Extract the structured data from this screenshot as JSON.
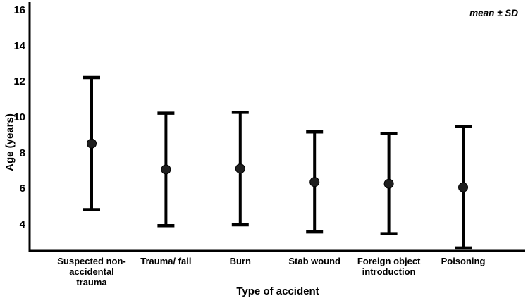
{
  "figure": {
    "annotation": "mean ± SD",
    "y_axis_title": "Age (years)",
    "x_axis_title": "Type of accident"
  },
  "chart_data": {
    "type": "scatter",
    "subtype": "errorbar-mean-sd",
    "title": "",
    "xlabel": "Type of accident",
    "ylabel": "Age (years)",
    "annotation": "mean ± SD",
    "categories": [
      "Suspected non-\naccidental\ntrauma",
      "Trauma/ fall",
      "Burn",
      "Stab wound",
      "Foreign object\nintroduction",
      "Poisoning"
    ],
    "series": [
      {
        "name": "mean ± SD",
        "means": [
          8.55,
          7.1,
          7.15,
          6.4,
          6.3,
          6.1
        ],
        "sds": [
          3.7,
          3.15,
          3.15,
          2.8,
          2.8,
          3.4
        ],
        "upper": [
          12.25,
          10.25,
          10.3,
          9.2,
          9.1,
          9.5
        ],
        "lower": [
          4.85,
          3.95,
          4.0,
          3.6,
          3.5,
          2.7
        ]
      }
    ],
    "yticks": [
      4,
      6,
      8,
      10,
      12,
      14,
      16
    ],
    "ylim": [
      2.58,
      16.47
    ],
    "grid": false,
    "legend_position": "none",
    "colors": {
      "line": "#000000",
      "marker": "#1f1f1f",
      "axis": "#000000",
      "background": "#ffffff"
    }
  }
}
